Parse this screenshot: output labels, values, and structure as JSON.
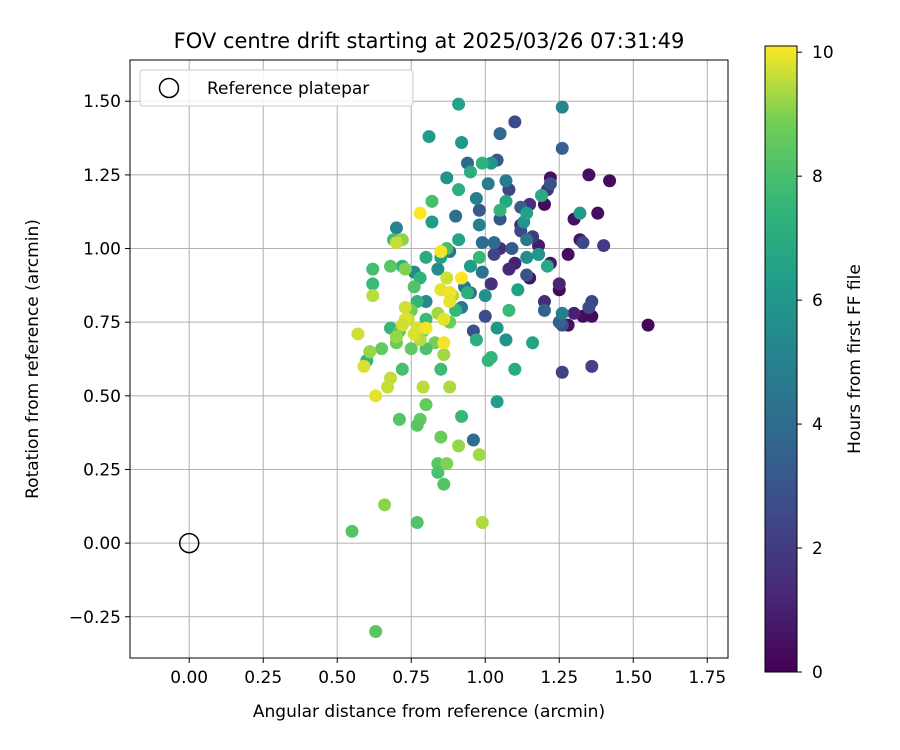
{
  "chart_data": {
    "type": "scatter",
    "title": "FOV centre drift starting at 2025/03/26 07:31:49",
    "xlabel": "Angular distance from reference (arcmin)",
    "ylabel": "Rotation from reference (arcmin)",
    "xlim": [
      -0.2,
      1.82
    ],
    "ylim": [
      -0.39,
      1.64
    ],
    "xticks": [
      0.0,
      0.25,
      0.5,
      0.75,
      1.0,
      1.25,
      1.5,
      1.75
    ],
    "xtick_labels": [
      "0.00",
      "0.25",
      "0.50",
      "0.75",
      "1.00",
      "1.25",
      "1.50",
      "1.75"
    ],
    "yticks": [
      -0.25,
      0.0,
      0.25,
      0.5,
      0.75,
      1.0,
      1.25,
      1.5
    ],
    "ytick_labels": [
      "−0.25",
      "0.00",
      "0.25",
      "0.50",
      "0.75",
      "1.00",
      "1.25",
      "1.50"
    ],
    "grid": true,
    "legend": {
      "placement": "top-left",
      "entries": [
        "Reference platepar"
      ]
    },
    "reference_point": {
      "x": 0.0,
      "y": 0.0,
      "name": "Reference platepar"
    },
    "colorbar": {
      "label": "Hours from first FF file",
      "colormap": "viridis",
      "range": [
        0,
        10.1
      ],
      "ticks": [
        0,
        2,
        4,
        6,
        8,
        10
      ],
      "tick_labels": [
        "0",
        "2",
        "4",
        "6",
        "8",
        "10"
      ]
    },
    "points": [
      [
        1.55,
        0.74,
        0.2
      ],
      [
        1.42,
        1.23,
        0.3
      ],
      [
        1.38,
        1.12,
        0.4
      ],
      [
        1.35,
        1.25,
        0.5
      ],
      [
        1.32,
        1.03,
        0.6
      ],
      [
        1.3,
        1.1,
        0.5
      ],
      [
        1.28,
        0.98,
        0.4
      ],
      [
        1.22,
        1.24,
        0.5
      ],
      [
        1.2,
        1.15,
        0.3
      ],
      [
        1.25,
        0.86,
        0.2
      ],
      [
        1.33,
        0.77,
        0.4
      ],
      [
        1.36,
        0.77,
        0.3
      ],
      [
        1.22,
        0.95,
        0.7
      ],
      [
        1.18,
        1.01,
        0.8
      ],
      [
        1.15,
        0.9,
        0.6
      ],
      [
        1.12,
        1.08,
        1.0
      ],
      [
        1.28,
        0.74,
        0.5
      ],
      [
        1.3,
        0.78,
        1.0
      ],
      [
        1.25,
        0.88,
        1.2
      ],
      [
        1.2,
        0.82,
        1.4
      ],
      [
        1.1,
        0.95,
        1.1
      ],
      [
        1.05,
        1.0,
        1.5
      ],
      [
        1.15,
        1.15,
        1.6
      ],
      [
        1.21,
        1.2,
        1.8
      ],
      [
        1.08,
        0.93,
        1.3
      ],
      [
        1.02,
        0.88,
        1.7
      ],
      [
        1.16,
        1.04,
        1.9
      ],
      [
        1.4,
        1.01,
        2.0
      ],
      [
        1.36,
        0.82,
        2.3
      ],
      [
        1.35,
        0.8,
        2.6
      ],
      [
        1.33,
        1.02,
        2.5
      ],
      [
        1.26,
        0.74,
        2.8
      ],
      [
        1.26,
        0.58,
        2.2
      ],
      [
        1.36,
        0.6,
        2.2
      ],
      [
        1.1,
        1.43,
        2.6
      ],
      [
        1.22,
        1.22,
        2.9
      ],
      [
        1.12,
        1.06,
        2.5
      ],
      [
        1.18,
        0.98,
        2.2
      ],
      [
        1.03,
        0.98,
        2.4
      ],
      [
        1.0,
        0.77,
        2.7
      ],
      [
        0.96,
        0.72,
        2.8
      ],
      [
        1.08,
        1.2,
        2.4
      ],
      [
        1.05,
        1.1,
        3.0
      ],
      [
        1.14,
        0.91,
        2.9
      ],
      [
        1.04,
        1.3,
        3.1
      ],
      [
        0.98,
        1.13,
        3.2
      ],
      [
        1.12,
        1.14,
        3.4
      ],
      [
        1.26,
        1.34,
        3.5
      ],
      [
        1.2,
        0.79,
        3.6
      ],
      [
        1.25,
        0.75,
        3.6
      ],
      [
        1.05,
        1.39,
        3.8
      ],
      [
        0.94,
        1.29,
        3.8
      ],
      [
        1.03,
        1.02,
        3.9
      ],
      [
        1.09,
        1.0,
        3.3
      ],
      [
        0.99,
        1.02,
        4.0
      ],
      [
        0.9,
        1.11,
        4.1
      ],
      [
        0.95,
        0.85,
        4.2
      ],
      [
        0.96,
        0.35,
        4.0
      ],
      [
        0.88,
        0.99,
        4.3
      ],
      [
        0.99,
        0.92,
        4.4
      ],
      [
        0.93,
        0.87,
        4.5
      ],
      [
        1.07,
        1.23,
        4.6
      ],
      [
        1.01,
        1.22,
        4.7
      ],
      [
        0.97,
        1.17,
        4.8
      ],
      [
        0.92,
        0.8,
        4.6
      ],
      [
        1.14,
        1.03,
        4.5
      ],
      [
        1.26,
        0.78,
        4.9
      ],
      [
        0.98,
        1.08,
        5.0
      ],
      [
        0.7,
        1.07,
        5.1
      ],
      [
        0.76,
        0.92,
        5.3
      ],
      [
        0.8,
        0.82,
        5.4
      ],
      [
        0.84,
        0.93,
        5.5
      ],
      [
        1.14,
        0.97,
        5.6
      ],
      [
        1.26,
        1.48,
        5.2
      ],
      [
        0.91,
        1.49,
        6.5
      ],
      [
        0.81,
        1.38,
        6.2
      ],
      [
        1.02,
        1.29,
        5.9
      ],
      [
        0.92,
        1.36,
        6.1
      ],
      [
        0.87,
        1.24,
        5.9
      ],
      [
        1.04,
        0.48,
        6.3
      ],
      [
        1.07,
        0.69,
        5.8
      ],
      [
        1.04,
        0.73,
        6.0
      ],
      [
        1.0,
        0.84,
        5.7
      ],
      [
        0.85,
        0.97,
        6.4
      ],
      [
        0.82,
        1.09,
        6.2
      ],
      [
        0.95,
        0.94,
        6.3
      ],
      [
        1.13,
        1.09,
        5.9
      ],
      [
        1.18,
        0.98,
        6.0
      ],
      [
        0.91,
        1.03,
        6.6
      ],
      [
        0.88,
        0.85,
        6.7
      ],
      [
        1.14,
        1.12,
        6.5
      ],
      [
        1.16,
        0.68,
        6.6
      ],
      [
        1.1,
        0.59,
        6.9
      ],
      [
        1.11,
        0.86,
        6.4
      ],
      [
        1.21,
        0.94,
        6.8
      ],
      [
        1.19,
        1.18,
        6.9
      ],
      [
        1.32,
        1.12,
        6.2
      ],
      [
        1.07,
        1.16,
        6.7
      ],
      [
        0.95,
        1.26,
        7.0
      ],
      [
        0.91,
        1.2,
        7.2
      ],
      [
        0.99,
        1.29,
        7.3
      ],
      [
        0.97,
        0.69,
        7.1
      ],
      [
        1.02,
        0.63,
        7.4
      ],
      [
        1.01,
        0.62,
        7.5
      ],
      [
        0.92,
        0.43,
        7.6
      ],
      [
        0.8,
        0.97,
        7.0
      ],
      [
        0.78,
        0.9,
        7.3
      ],
      [
        0.8,
        0.76,
        7.7
      ],
      [
        0.85,
        0.59,
        7.8
      ],
      [
        0.9,
        0.79,
        7.5
      ],
      [
        0.94,
        0.85,
        7.2
      ],
      [
        0.98,
        0.97,
        7.6
      ],
      [
        1.05,
        1.13,
        7.4
      ],
      [
        1.08,
        0.79,
        7.7
      ],
      [
        0.87,
        1.0,
        7.9
      ],
      [
        0.77,
        0.82,
        7.4
      ],
      [
        0.72,
        0.94,
        7.3
      ],
      [
        0.69,
        1.03,
        7.8
      ],
      [
        0.62,
        0.93,
        7.9
      ],
      [
        0.62,
        0.88,
        7.7
      ],
      [
        0.6,
        0.62,
        7.6
      ],
      [
        0.68,
        0.73,
        7.5
      ],
      [
        0.82,
        1.16,
        8.0
      ],
      [
        0.76,
        0.87,
        8.2
      ],
      [
        0.71,
        0.72,
        8.3
      ],
      [
        0.68,
        0.94,
        8.4
      ],
      [
        0.75,
        0.66,
        8.5
      ],
      [
        0.72,
        0.59,
        8.0
      ],
      [
        0.65,
        0.66,
        8.6
      ],
      [
        0.71,
        0.42,
        8.3
      ],
      [
        0.78,
        0.42,
        8.5
      ],
      [
        0.77,
        0.4,
        8.4
      ],
      [
        0.77,
        0.07,
        8.2
      ],
      [
        0.8,
        0.47,
        8.6
      ],
      [
        0.84,
        0.27,
        8.4
      ],
      [
        0.84,
        0.24,
        8.1
      ],
      [
        0.86,
        0.2,
        8.3
      ],
      [
        0.85,
        0.36,
        8.7
      ],
      [
        0.83,
        0.68,
        8.9
      ],
      [
        0.8,
        0.66,
        8.1
      ],
      [
        0.88,
        0.75,
        8.8
      ],
      [
        0.55,
        0.04,
        8.3
      ],
      [
        0.63,
        -0.3,
        8.4
      ],
      [
        0.73,
        0.93,
        9.0
      ],
      [
        0.79,
        0.72,
        8.6
      ],
      [
        0.75,
        0.79,
        8.8
      ],
      [
        0.7,
        0.68,
        8.7
      ],
      [
        0.66,
        0.13,
        9.1
      ],
      [
        0.91,
        0.33,
        9.2
      ],
      [
        0.98,
        0.3,
        9.3
      ],
      [
        0.99,
        0.07,
        9.4
      ],
      [
        0.87,
        0.27,
        9.0
      ],
      [
        0.88,
        0.53,
        9.4
      ],
      [
        0.79,
        0.53,
        9.5
      ],
      [
        0.61,
        0.65,
        9.2
      ],
      [
        0.67,
        0.53,
        9.6
      ],
      [
        0.86,
        0.64,
        9.3
      ],
      [
        0.73,
        0.8,
        9.7
      ],
      [
        0.7,
        0.7,
        9.2
      ],
      [
        0.72,
        1.03,
        9.1
      ],
      [
        0.84,
        0.78,
        9.3
      ],
      [
        0.74,
        0.76,
        9.6
      ],
      [
        0.77,
        0.73,
        9.8
      ],
      [
        0.78,
        0.69,
        9.5
      ],
      [
        0.85,
        0.86,
        9.9
      ],
      [
        0.89,
        0.84,
        9.4
      ],
      [
        0.73,
        0.76,
        9.8
      ],
      [
        0.72,
        0.74,
        9.7
      ],
      [
        0.68,
        0.56,
        9.6
      ],
      [
        0.59,
        0.6,
        9.8
      ],
      [
        0.63,
        0.5,
        9.9
      ],
      [
        0.62,
        0.84,
        9.5
      ],
      [
        0.57,
        0.71,
        9.7
      ],
      [
        0.7,
        1.02,
        9.6
      ],
      [
        0.86,
        0.76,
        9.9
      ],
      [
        0.88,
        0.85,
        10.0
      ],
      [
        0.8,
        0.73,
        10.0
      ],
      [
        0.92,
        0.9,
        10.1
      ],
      [
        0.86,
        0.68,
        10.0
      ],
      [
        0.78,
        1.12,
        10.1
      ],
      [
        0.85,
        0.99,
        10.0
      ],
      [
        0.88,
        0.82,
        9.9
      ],
      [
        0.76,
        0.71,
        9.8
      ],
      [
        0.87,
        0.9,
        9.7
      ]
    ]
  }
}
